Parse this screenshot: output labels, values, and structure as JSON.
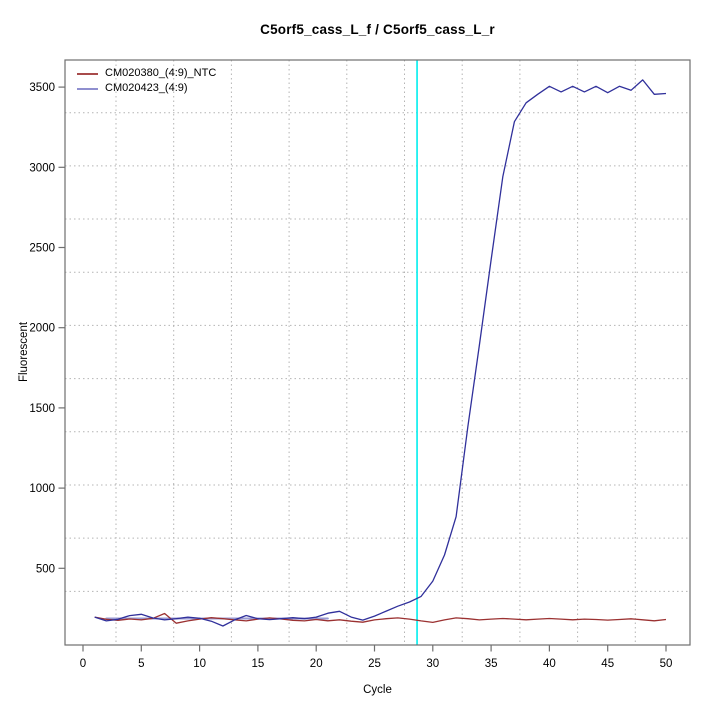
{
  "title": "C5orf5_cass_L_f / C5orf5_cass_L_r",
  "axes": {
    "x_label": "Cycle",
    "y_label": "Fluorescent",
    "x_ticks": [
      0,
      5,
      10,
      15,
      20,
      25,
      30,
      35,
      40,
      45,
      50
    ],
    "y_ticks": [
      500,
      1000,
      1500,
      2000,
      2500,
      3000,
      3500
    ]
  },
  "legend": {
    "items": [
      {
        "label": "CM020380_(4:9)_NTC",
        "color": "#a84b4b"
      },
      {
        "label": "CM020423_(4:9)",
        "color": "#8f8fcf"
      }
    ]
  },
  "colors": {
    "ntc_line": "#9b3131",
    "sample_line": "#30309b",
    "sample_baseline_fit": "#9a9ad2",
    "threshold_marker": "#00eded",
    "grid": "#b4b4b4",
    "box": "#6f6f6f",
    "background": "#ffffff"
  },
  "chart_data": {
    "type": "line",
    "title": "C5orf5_cass_L_f / C5orf5_cass_L_r",
    "xlabel": "Cycle",
    "ylabel": "Fluorescent",
    "x": [
      1,
      2,
      3,
      4,
      5,
      6,
      7,
      8,
      9,
      10,
      11,
      12,
      13,
      14,
      15,
      16,
      17,
      18,
      19,
      20,
      21,
      22,
      23,
      24,
      25,
      26,
      27,
      28,
      29,
      30,
      31,
      32,
      33,
      34,
      35,
      36,
      37,
      38,
      39,
      40,
      41,
      42,
      43,
      44,
      45,
      46,
      47,
      48,
      49,
      50
    ],
    "series": [
      {
        "name": "CM020380_(4:9)_NTC",
        "color": "#9b3131",
        "values": [
          196,
          182,
          176,
          184,
          178,
          188,
          218,
          158,
          172,
          183,
          192,
          186,
          178,
          172,
          183,
          191,
          184,
          176,
          172,
          181,
          173,
          179,
          170,
          164,
          178,
          186,
          191,
          183,
          172,
          163,
          178,
          191,
          186,
          178,
          183,
          187,
          183,
          179,
          183,
          187,
          183,
          179,
          183,
          181,
          177,
          181,
          185,
          179,
          173,
          181
        ]
      },
      {
        "name": "CM020423_(4:9)",
        "color": "#30309b",
        "legend_color": "#8f8fcf",
        "values": [
          196,
          172,
          182,
          205,
          213,
          190,
          178,
          186,
          196,
          188,
          170,
          140,
          178,
          206,
          186,
          180,
          186,
          192,
          186,
          196,
          220,
          232,
          196,
          177,
          202,
          233,
          264,
          290,
          325,
          420,
          583,
          822,
          1380,
          1892,
          2422,
          2941,
          3284,
          3402,
          3455,
          3505,
          3470,
          3505,
          3470,
          3505,
          3465,
          3505,
          3480,
          3545,
          3455,
          3460
        ]
      }
    ],
    "baseline_segment": {
      "series": "CM020423_(4:9)",
      "x_start": 2,
      "x_end": 21,
      "value": 187,
      "color": "#9a9ad2"
    },
    "threshold_cycle_line": {
      "x_value": 28.65,
      "color": "#00eded"
    },
    "x_ticks": [
      0,
      5,
      10,
      15,
      20,
      25,
      30,
      35,
      40,
      45,
      50
    ],
    "y_ticks": [
      500,
      1000,
      1500,
      2000,
      2500,
      3000,
      3500
    ],
    "xlim": [
      -1.5,
      52
    ],
    "ylim": [
      20,
      3670
    ],
    "grid": "dotted",
    "legend_position": "top-left"
  }
}
